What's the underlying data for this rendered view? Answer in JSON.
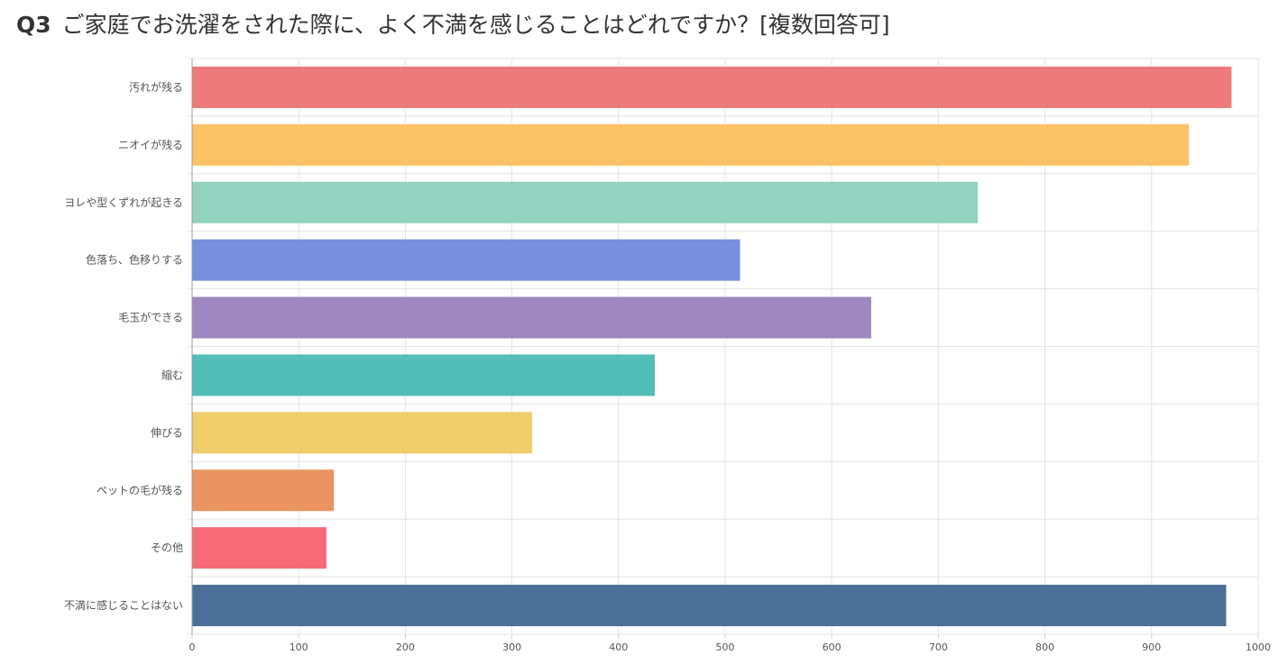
{
  "question": {
    "number": "Q3",
    "text": "ご家庭でお洗濯をされた際に、よく不満を感じることはどれですか？[複数回答可]"
  },
  "chart_data": {
    "type": "bar",
    "orientation": "horizontal",
    "categories": [
      "汚れが残る",
      "ニオイが残る",
      "ヨレや型くずれが起きる",
      "色落ち、色移りする",
      "毛玉ができる",
      "縮む",
      "伸びる",
      "ペットの毛が残る",
      "その他",
      "不満に感じることはない"
    ],
    "values": [
      975,
      935,
      737,
      514,
      637,
      434,
      319,
      133,
      126,
      970
    ],
    "colors": [
      "#ed7b7b",
      "#fcc268",
      "#93d2be",
      "#788fde",
      "#9e88bf",
      "#53bdb7",
      "#efcd6a",
      "#eb9462",
      "#f76b78",
      "#4b6f97"
    ],
    "xlim": [
      0,
      1000
    ],
    "xticks": [
      "0",
      "100",
      "200",
      "300",
      "400",
      "500",
      "600",
      "700",
      "800",
      "900",
      "1000"
    ],
    "grid": true,
    "legend": "none"
  }
}
